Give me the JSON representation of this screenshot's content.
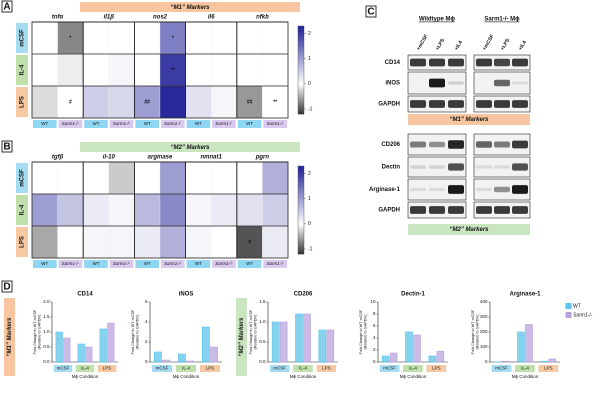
{
  "condition_colors": [
    "#a6dcf2",
    "#bfe0aa",
    "#f6c9a2"
  ],
  "genotype_colors": [
    "#8fd6f2",
    "#d9c9ee"
  ],
  "panels": {
    "A": {
      "label": "A",
      "header": "“M1” Markers",
      "header_color": "#f7c6a0",
      "genes": [
        "tnfα",
        "il1β",
        "nos2",
        "il6",
        "nfkb"
      ],
      "conditions": [
        "mCSF",
        "IL-4",
        "LPS"
      ],
      "genotypes": [
        "WT",
        "Sarm1-/-"
      ],
      "values": [
        [
          0,
          -0.7,
          0,
          0,
          0,
          1.3,
          0,
          0,
          0,
          0
        ],
        [
          0,
          -0.1,
          0,
          0.1,
          0,
          2.0,
          0,
          0,
          0,
          0
        ],
        [
          -0.2,
          0,
          0.5,
          0.4,
          1.0,
          2.2,
          0.3,
          0.1,
          -0.6,
          0
        ]
      ],
      "annotations": [
        [
          null,
          "*",
          null,
          null,
          null,
          "*",
          null,
          null,
          null,
          null
        ],
        [
          null,
          null,
          null,
          null,
          null,
          "**",
          null,
          null,
          null,
          null
        ],
        [
          null,
          "#",
          null,
          null,
          "##",
          null,
          null,
          null,
          "##",
          "**"
        ]
      ],
      "colorbar_range": [
        -1.2,
        2.3
      ],
      "colorbar_ticks": [
        2,
        1,
        0,
        -1
      ]
    },
    "B": {
      "label": "B",
      "header": "“M2” Markers",
      "header_color": "#c9e6c0",
      "genes": [
        "tgfβ",
        "il-10",
        "arginase",
        "nmnat1",
        "pgrn"
      ],
      "conditions": [
        "mCSF",
        "IL-4",
        "LPS"
      ],
      "genotypes": [
        "WT",
        "Sarm1-/-"
      ],
      "values": [
        [
          0,
          0,
          0,
          -0.3,
          0,
          1.0,
          0,
          0,
          0,
          0.8
        ],
        [
          1.0,
          0.6,
          0.2,
          0.1,
          0.7,
          1.2,
          0.1,
          0.2,
          0.3,
          0.5
        ],
        [
          -0.5,
          0,
          0.1,
          0.1,
          0.2,
          0.8,
          0.1,
          0,
          -1.0,
          0.2
        ]
      ],
      "annotations": [
        [
          null,
          null,
          null,
          null,
          null,
          null,
          null,
          null,
          null,
          null
        ],
        [
          null,
          null,
          null,
          null,
          null,
          null,
          null,
          null,
          null,
          null
        ],
        [
          null,
          null,
          null,
          null,
          null,
          null,
          null,
          null,
          "#",
          null
        ]
      ],
      "colorbar_range": [
        -1.2,
        2.3
      ],
      "colorbar_ticks": [
        2,
        1,
        0,
        -1
      ]
    },
    "C": {
      "label": "C",
      "groups": [
        "Wildtype Mϕ",
        "Sarm1-/- Mϕ"
      ],
      "lanes": [
        "+mCSF",
        "+LPS",
        "+IL4"
      ],
      "lane_colors": [
        "#000000",
        "#e08a1e",
        "#3a9a3a"
      ],
      "m1_rows": [
        "CD14",
        "iNOS",
        "GAPDH"
      ],
      "m1_header": "“M1” Markers",
      "m2_rows": [
        "CD206",
        "Dectin",
        "Arginase-1",
        "GAPDH"
      ],
      "m2_header": "“M2” Markers"
    },
    "D": {
      "label": "D",
      "m1_header": "“M1” Markers",
      "m2_header": "“M2” Markers",
      "charts": [
        {
          "type": "bar",
          "title": "CD14",
          "categories": [
            "mCSF",
            "IL-4",
            "LPS"
          ],
          "ylabel": [
            "Fold Change to WT mCSF",
            "(Relative to GAPDH)"
          ],
          "xlabel": "Mϕ Condition",
          "ylim": [
            0,
            2
          ],
          "yticks": [
            {
              "value": 0,
              "label": "0.0"
            },
            {
              "value": 0.5,
              "label": "0.5"
            },
            {
              "value": 1,
              "label": "1.0"
            },
            {
              "value": 1.5,
              "label": "1.5"
            },
            {
              "value": 2,
              "label": "2.0"
            }
          ],
          "series": [
            {
              "color": "#5cc3ea",
              "values": [
                1.0,
                0.6,
                1.1
              ]
            },
            {
              "color": "#b9a3dc",
              "values": [
                0.8,
                0.5,
                1.3
              ]
            }
          ]
        },
        {
          "type": "bar",
          "title": "iNOS",
          "categories": [
            "mCSF",
            "IL-4",
            "LPS"
          ],
          "ylabel": [
            "Fold Change to WT mCSF",
            "(Relative to GAPDH)"
          ],
          "xlabel": "Mϕ Condition",
          "ylim": [
            0,
            6
          ],
          "yticks": [
            0,
            2,
            4,
            6
          ],
          "series": [
            {
              "color": "#5cc3ea",
              "values": [
                1.0,
                0.8,
                3.5
              ]
            },
            {
              "color": "#b9a3dc",
              "values": [
                0.2,
                0.1,
                1.5
              ]
            }
          ]
        },
        {
          "type": "bar",
          "title": "CD206",
          "categories": [
            "mCSF",
            "IL-4",
            "LPS"
          ],
          "ylabel": [
            "Fold Change to WT mCSF",
            "(Relative to GAPDH)"
          ],
          "xlabel": "Mϕ Condition",
          "ylim": [
            0,
            1.5
          ],
          "yticks": [
            {
              "value": 0,
              "label": "0.0"
            },
            {
              "value": 0.5,
              "label": "0.5"
            },
            {
              "value": 1,
              "label": "1.0"
            },
            {
              "value": 1.5,
              "label": "1.5"
            }
          ],
          "series": [
            {
              "color": "#5cc3ea",
              "values": [
                1.0,
                1.2,
                0.8
              ]
            },
            {
              "color": "#b9a3dc",
              "values": [
                1.0,
                1.2,
                0.8
              ]
            }
          ]
        },
        {
          "type": "bar",
          "title": "Dectin-1",
          "categories": [
            "mCSF",
            "IL-4",
            "LPS"
          ],
          "ylabel": [
            "Fold Change to WT mCSF",
            "(Relative to GAPDH)"
          ],
          "xlabel": "Mϕ Condition",
          "ylim": [
            0,
            10
          ],
          "yticks": [
            0,
            2,
            4,
            6,
            8,
            10
          ],
          "series": [
            {
              "color": "#5cc3ea",
              "values": [
                1.0,
                5.0,
                1.0
              ]
            },
            {
              "color": "#b9a3dc",
              "values": [
                1.5,
                4.5,
                1.8
              ]
            }
          ]
        },
        {
          "type": "bar",
          "title": "Arginase-1",
          "categories": [
            "mCSF",
            "IL-4",
            "LPS"
          ],
          "ylabel": [
            "Fold Change to WT mCSF",
            "(Relative to GAPDH)"
          ],
          "xlabel": "Mϕ Condition",
          "ylim": [
            0,
            400
          ],
          "yticks": [
            0,
            100,
            200,
            300,
            400
          ],
          "series": [
            {
              "name": "WT",
              "color": "#5cc3ea",
              "values": [
                1,
                200,
                5
              ]
            },
            {
              "name": "Sarm1-/-",
              "color": "#b9a3dc",
              "values": [
                5,
                250,
                20
              ]
            }
          ]
        }
      ]
    }
  }
}
